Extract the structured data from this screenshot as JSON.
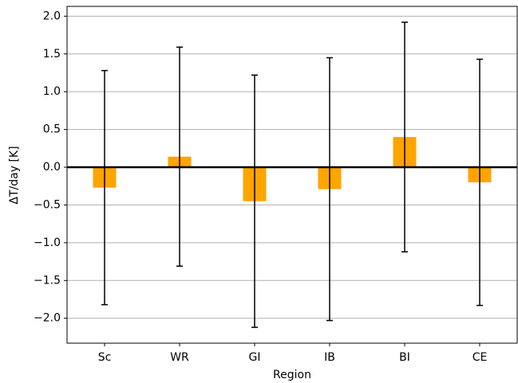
{
  "chart_data": {
    "type": "bar",
    "xlabel": "Region",
    "ylabel": "ΔT/day [K]",
    "categories": [
      "Sc",
      "WR",
      "GI",
      "IB",
      "BI",
      "CE"
    ],
    "values": [
      -0.27,
      0.14,
      -0.45,
      -0.29,
      0.4,
      -0.2
    ],
    "errors": [
      1.55,
      1.45,
      1.67,
      1.74,
      1.52,
      1.63
    ],
    "color": "#ffa500",
    "ylim": [
      -2.33,
      2.13
    ],
    "yticks": [
      {
        "value": -2.0,
        "label": "−2.0"
      },
      {
        "value": -1.5,
        "label": "−1.5"
      },
      {
        "value": -1.0,
        "label": "−1.0"
      },
      {
        "value": -0.5,
        "label": "−0.5"
      },
      {
        "value": 0.0,
        "label": "0.0"
      },
      {
        "value": 0.5,
        "label": "0.5"
      },
      {
        "value": 1.0,
        "label": "1.0"
      },
      {
        "value": 1.5,
        "label": "1.5"
      },
      {
        "value": 2.0,
        "label": "2.0"
      }
    ],
    "hline": 0,
    "grid": true
  }
}
